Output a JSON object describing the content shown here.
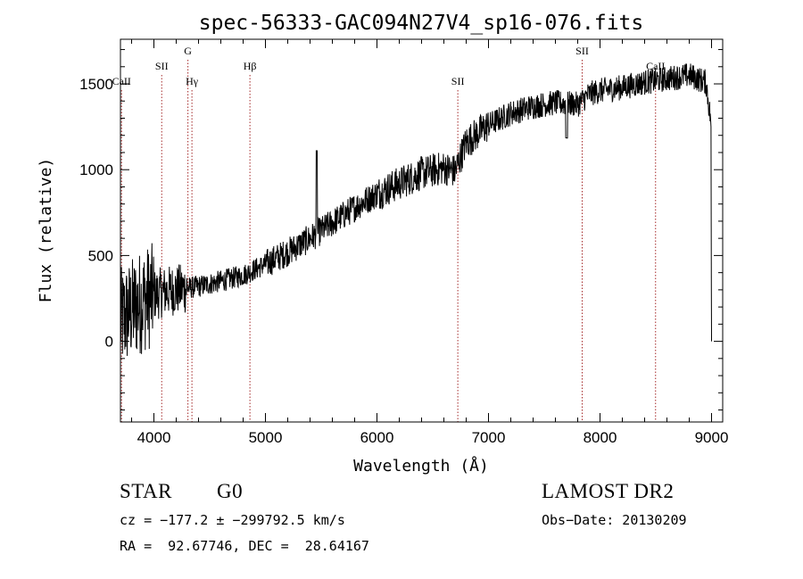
{
  "chart_data": {
    "type": "line",
    "title": "spec-56333-GAC094N27V4_sp16-076.fits",
    "xlabel": "Wavelength (Å)",
    "ylabel": "Flux (relative)",
    "xlim": [
      3700,
      9100
    ],
    "ylim": [
      -470,
      1760
    ],
    "x_ticks": [
      4000,
      5000,
      6000,
      7000,
      8000,
      9000
    ],
    "y_ticks": [
      0,
      500,
      1000,
      1500
    ],
    "x_tick_labels": [
      "4000",
      "5000",
      "6000",
      "7000",
      "8000",
      "9000"
    ],
    "y_tick_labels": [
      "0",
      "500",
      "1000",
      "1500"
    ],
    "line_color": "#000000",
    "marker_color": "#a52a2a",
    "spectral_lines": [
      {
        "label": "CaII",
        "x": 3710,
        "level": "low"
      },
      {
        "label": "SII",
        "x": 4070,
        "level": "mid"
      },
      {
        "label": "G",
        "x": 4305,
        "level": "high"
      },
      {
        "label": "Hγ",
        "x": 4341,
        "level": "low"
      },
      {
        "label": "Hβ",
        "x": 4861,
        "level": "mid"
      },
      {
        "label": "SII",
        "x": 6725,
        "level": "low"
      },
      {
        "label": "SII",
        "x": 7840,
        "level": "high"
      },
      {
        "label": "CaII",
        "x": 8498,
        "level": "mid"
      }
    ],
    "spectrum_shape": [
      [
        3700,
        120
      ],
      [
        3800,
        180
      ],
      [
        3900,
        240
      ],
      [
        4000,
        270
      ],
      [
        4100,
        290
      ],
      [
        4200,
        300
      ],
      [
        4300,
        310
      ],
      [
        4400,
        320
      ],
      [
        4600,
        350
      ],
      [
        4800,
        385
      ],
      [
        5000,
        450
      ],
      [
        5200,
        520
      ],
      [
        5400,
        600
      ],
      [
        5600,
        690
      ],
      [
        5800,
        780
      ],
      [
        6000,
        860
      ],
      [
        6200,
        920
      ],
      [
        6400,
        980
      ],
      [
        6600,
        1010
      ],
      [
        6700,
        990
      ],
      [
        6800,
        1160
      ],
      [
        7000,
        1260
      ],
      [
        7200,
        1330
      ],
      [
        7400,
        1370
      ],
      [
        7600,
        1390
      ],
      [
        7800,
        1380
      ],
      [
        7900,
        1440
      ],
      [
        8000,
        1460
      ],
      [
        8200,
        1480
      ],
      [
        8400,
        1510
      ],
      [
        8600,
        1530
      ],
      [
        8800,
        1550
      ],
      [
        8950,
        1510
      ],
      [
        8990,
        1300
      ],
      [
        9000,
        0
      ]
    ]
  },
  "info": {
    "object_class": "STAR",
    "subclass": "G0",
    "survey": "LAMOST DR2",
    "cz": "cz = −177.2 ± −299792.5 km/s",
    "obs_date": "Obs−Date: 20130209",
    "coords": "RA =  92.67746, DEC =  28.64167"
  }
}
